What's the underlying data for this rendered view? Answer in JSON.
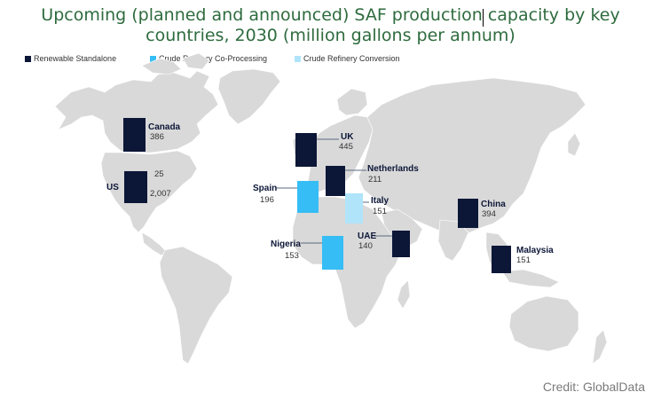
{
  "chart_data": {
    "type": "map-bar",
    "title": "Upcoming (planned and announced) SAF production capacity by key countries, 2030 (million gallons per annum)",
    "title_lines": [
      "Upcoming (planned and announced) SAF production capacity by key",
      "countries, 2030 (million gallons per annum)"
    ],
    "unit": "million gallons per annum",
    "legend": [
      {
        "name": "Renewable Standalone",
        "color": "#0c1637"
      },
      {
        "name": "Crude Refinery Co-Processing",
        "color": "#36bdf5"
      },
      {
        "name": "Crude Refinery Conversion",
        "color": "#b0e4fb"
      }
    ],
    "series": [
      {
        "country": "Canada",
        "category": "Renewable Standalone",
        "value": 386,
        "value_label": "386"
      },
      {
        "country": "US",
        "category": "Renewable Standalone",
        "value": 2007,
        "value_label": "2,007",
        "extra_label": "25"
      },
      {
        "country": "UK",
        "category": "Renewable Standalone",
        "value": 445,
        "value_label": "445"
      },
      {
        "country": "Netherlands",
        "category": "Renewable Standalone",
        "value": 211,
        "value_label": "211"
      },
      {
        "country": "Spain",
        "category": "Crude Refinery Co-Processing",
        "value": 196,
        "value_label": "196"
      },
      {
        "country": "Italy",
        "category": "Crude Refinery Conversion",
        "value": 151,
        "value_label": "151"
      },
      {
        "country": "Nigeria",
        "category": "Crude Refinery Co-Processing",
        "value": 153,
        "value_label": "153"
      },
      {
        "country": "UAE",
        "category": "Renewable Standalone",
        "value": 140,
        "value_label": "140"
      },
      {
        "country": "China",
        "category": "Renewable Standalone",
        "value": 394,
        "value_label": "394"
      },
      {
        "country": "Malaysia",
        "category": "Renewable Standalone",
        "value": 151,
        "value_label": "151"
      }
    ]
  },
  "credit": "Credit: GlobalData",
  "colors": {
    "title": "#2e6b3e",
    "land": "#d9d9d9",
    "renewable": "#0c1637",
    "coprocessing": "#36bdf5",
    "conversion": "#b0e4fb"
  }
}
